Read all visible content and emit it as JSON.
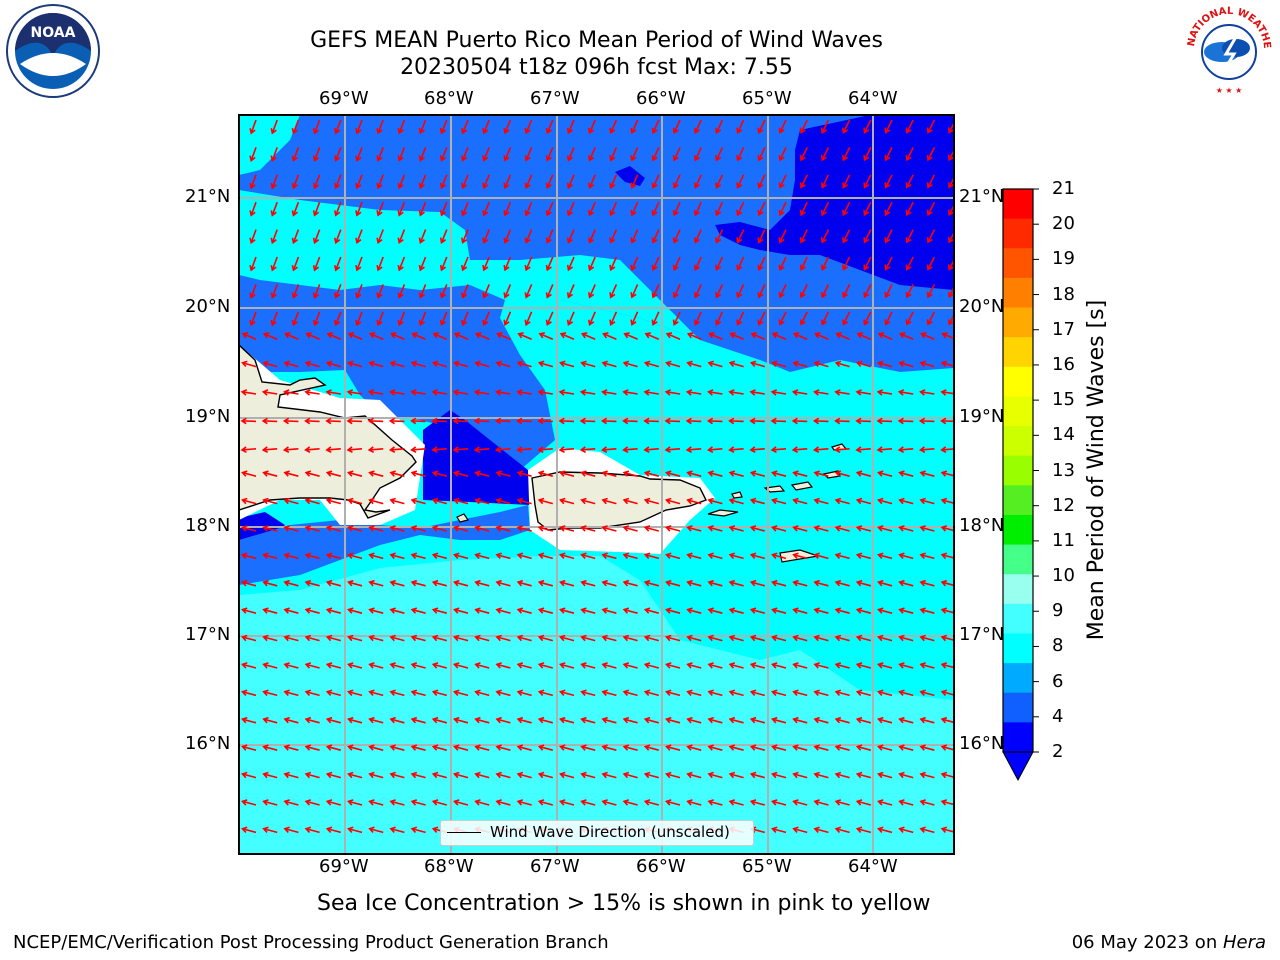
{
  "header": {
    "title_line1": "GEFS MEAN Puerto Rico Mean Period of Wind Waves",
    "title_line2": "20230504 t18z 096h fcst   Max: 7.55"
  },
  "logos": {
    "noaa": {
      "name": "noaa-logo",
      "text": "NOAA"
    },
    "nws": {
      "name": "nws-logo",
      "text": "NATIONAL WEATHER SERVICE"
    }
  },
  "axes": {
    "lon_labels": [
      "69°W",
      "68°W",
      "67°W",
      "66°W",
      "65°W",
      "64°W"
    ],
    "lat_labels": [
      "21°N",
      "20°N",
      "19°N",
      "18°N",
      "17°N",
      "16°N"
    ]
  },
  "legend": {
    "label": "Wind Wave Direction (unscaled)"
  },
  "colorbar": {
    "label": "Mean Period of Wind Waves [s]",
    "ticks": [
      "21",
      "20",
      "19",
      "18",
      "17",
      "16",
      "15",
      "14",
      "13",
      "12",
      "11",
      "10",
      "9",
      "8",
      "6",
      "4",
      "2"
    ],
    "colors": [
      "#ff0000",
      "#ff2a00",
      "#ff5500",
      "#ff8000",
      "#ffaa00",
      "#ffd400",
      "#ffff00",
      "#e8ff00",
      "#ccff00",
      "#99ff00",
      "#55ee22",
      "#00ee00",
      "#44ff88",
      "#99ffee",
      "#44ffff",
      "#00ffff",
      "#00aaff",
      "#1060ff",
      "#0000ff"
    ]
  },
  "notes": {
    "sea_ice": "Sea Ice Concentration > 15% is shown in pink to yellow",
    "credit": "NCEP/EMC/Verification Post Processing Product Generation Branch",
    "date": "06 May 2023 on ",
    "machine": "Hera"
  },
  "map_colors": {
    "deep_blue": "#0000ee",
    "mid_blue": "#1a6fff",
    "cyan": "#00ffff",
    "light_cyan": "#44ffff",
    "land": "#eeeedd",
    "arrow": "#ff0000"
  }
}
